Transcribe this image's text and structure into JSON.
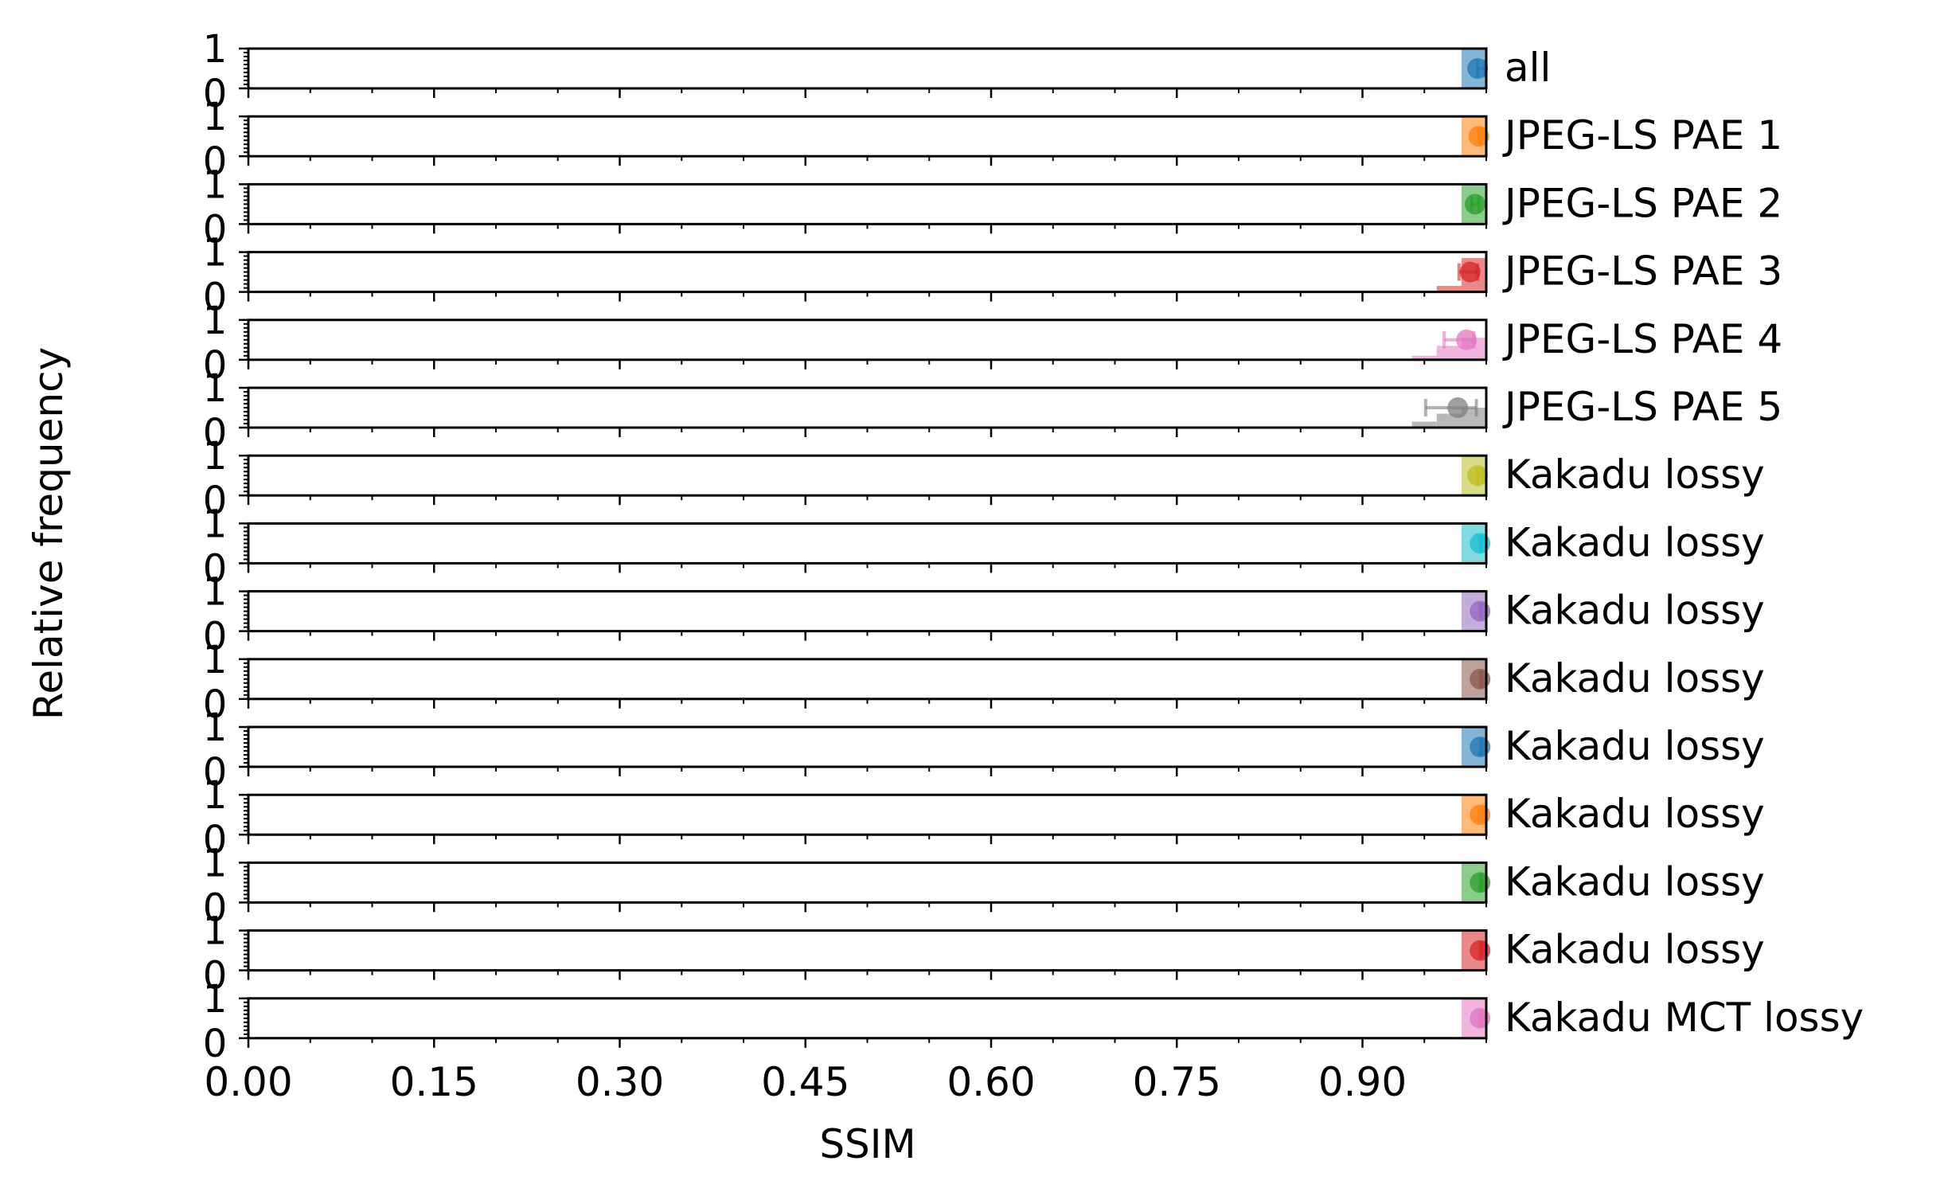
{
  "chart_data": {
    "type": "histogram",
    "xlabel": "SSIM",
    "ylabel": "Relative frequency",
    "xlim": [
      0,
      1
    ],
    "ylim": [
      0,
      1
    ],
    "x_ticks": [
      0.0,
      0.15,
      0.3,
      0.45,
      0.6,
      0.75,
      0.9
    ],
    "x_tick_labels": [
      "0.00",
      "0.15",
      "0.30",
      "0.45",
      "0.60",
      "0.75",
      "0.90"
    ],
    "y_ticks": [
      0,
      1
    ],
    "y_tick_labels": [
      "0",
      "1"
    ],
    "panels": [
      {
        "label": "all",
        "color": "#1f77b4",
        "mean": 0.993,
        "err": [
          0.993,
          0.999
        ],
        "bars": [
          [
            0.98,
            1.0,
            1.0
          ]
        ]
      },
      {
        "label": "JPEG-LS PAE 1",
        "color": "#ff7f0e",
        "mean": 0.994,
        "err": [
          0.994,
          0.996
        ],
        "bars": [
          [
            0.98,
            1.0,
            1.0
          ]
        ]
      },
      {
        "label": "JPEG-LS PAE 2",
        "color": "#2ca02c",
        "mean": 0.991,
        "err": [
          0.988,
          0.994
        ],
        "bars": [
          [
            0.98,
            1.0,
            1.0
          ]
        ]
      },
      {
        "label": "JPEG-LS PAE 3",
        "color": "#d62728",
        "mean": 0.987,
        "err": [
          0.978,
          0.993
        ],
        "bars": [
          [
            0.96,
            0.98,
            0.15
          ],
          [
            0.98,
            1.0,
            0.85
          ]
        ]
      },
      {
        "label": "JPEG-LS PAE 4",
        "color": "#e377c2",
        "mean": 0.984,
        "err": [
          0.966,
          0.99
        ],
        "bars": [
          [
            0.94,
            0.96,
            0.1
          ],
          [
            0.96,
            0.98,
            0.35
          ],
          [
            0.98,
            1.0,
            0.55
          ]
        ]
      },
      {
        "label": "JPEG-LS PAE 5",
        "color": "#7f7f7f",
        "mean": 0.977,
        "err": [
          0.951,
          0.992
        ],
        "bars": [
          [
            0.94,
            0.96,
            0.15
          ],
          [
            0.96,
            0.98,
            0.35
          ],
          [
            0.98,
            1.0,
            0.5
          ]
        ]
      },
      {
        "label": "Kakadu  lossy",
        "color": "#bcbd22",
        "mean": 0.993,
        "err": [
          0.993,
          0.997
        ],
        "bars": [
          [
            0.98,
            1.0,
            1.0
          ]
        ]
      },
      {
        "label": "Kakadu  lossy",
        "color": "#17becf",
        "mean": 0.995,
        "err": [
          0.995,
          0.997
        ],
        "bars": [
          [
            0.98,
            1.0,
            1.0
          ]
        ]
      },
      {
        "label": "Kakadu  lossy",
        "color": "#9467bd",
        "mean": 0.995,
        "err": [
          0.995,
          0.997
        ],
        "bars": [
          [
            0.98,
            1.0,
            1.0
          ]
        ]
      },
      {
        "label": "Kakadu  lossy",
        "color": "#8c564b",
        "mean": 0.995,
        "err": [
          0.995,
          0.997
        ],
        "bars": [
          [
            0.98,
            1.0,
            1.0
          ]
        ]
      },
      {
        "label": "Kakadu  lossy",
        "color": "#1f77b4",
        "mean": 0.995,
        "err": [
          0.995,
          0.997
        ],
        "bars": [
          [
            0.98,
            1.0,
            1.0
          ]
        ]
      },
      {
        "label": "Kakadu  lossy",
        "color": "#ff7f0e",
        "mean": 0.995,
        "err": [
          0.995,
          0.997
        ],
        "bars": [
          [
            0.98,
            1.0,
            1.0
          ]
        ]
      },
      {
        "label": "Kakadu  lossy",
        "color": "#2ca02c",
        "mean": 0.995,
        "err": [
          0.995,
          0.997
        ],
        "bars": [
          [
            0.98,
            1.0,
            1.0
          ]
        ]
      },
      {
        "label": "Kakadu  lossy",
        "color": "#d62728",
        "mean": 0.995,
        "err": [
          0.995,
          0.997
        ],
        "bars": [
          [
            0.98,
            1.0,
            1.0
          ]
        ]
      },
      {
        "label": "Kakadu MCT  lossy",
        "color": "#e377c2",
        "mean": 0.995,
        "err": [
          0.995,
          0.997
        ],
        "bars": [
          [
            0.98,
            1.0,
            1.0
          ]
        ]
      }
    ]
  }
}
